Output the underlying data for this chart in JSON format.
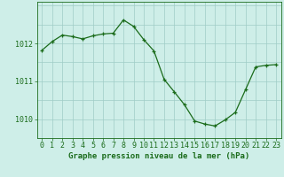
{
  "hours": [
    0,
    1,
    2,
    3,
    4,
    5,
    6,
    7,
    8,
    9,
    10,
    11,
    12,
    13,
    14,
    15,
    16,
    17,
    18,
    19,
    20,
    21,
    22,
    23
  ],
  "pressure": [
    1011.82,
    1012.05,
    1012.22,
    1012.18,
    1012.12,
    1012.2,
    1012.25,
    1012.27,
    1012.62,
    1012.45,
    1012.1,
    1011.8,
    1011.05,
    1010.72,
    1010.38,
    1009.95,
    1009.87,
    1009.82,
    1009.98,
    1010.18,
    1010.78,
    1011.38,
    1011.42,
    1011.44
  ],
  "line_color": "#1a6b1a",
  "marker_color": "#1a6b1a",
  "bg_color": "#ceeee8",
  "grid_color": "#a0ccc6",
  "ylabel_ticks": [
    1010,
    1011,
    1012
  ],
  "xlabel": "Graphe pression niveau de la mer (hPa)",
  "xlabel_fontsize": 6.5,
  "tick_fontsize": 6.0,
  "ylim": [
    1009.5,
    1013.1
  ],
  "xlim": [
    -0.5,
    23.5
  ]
}
